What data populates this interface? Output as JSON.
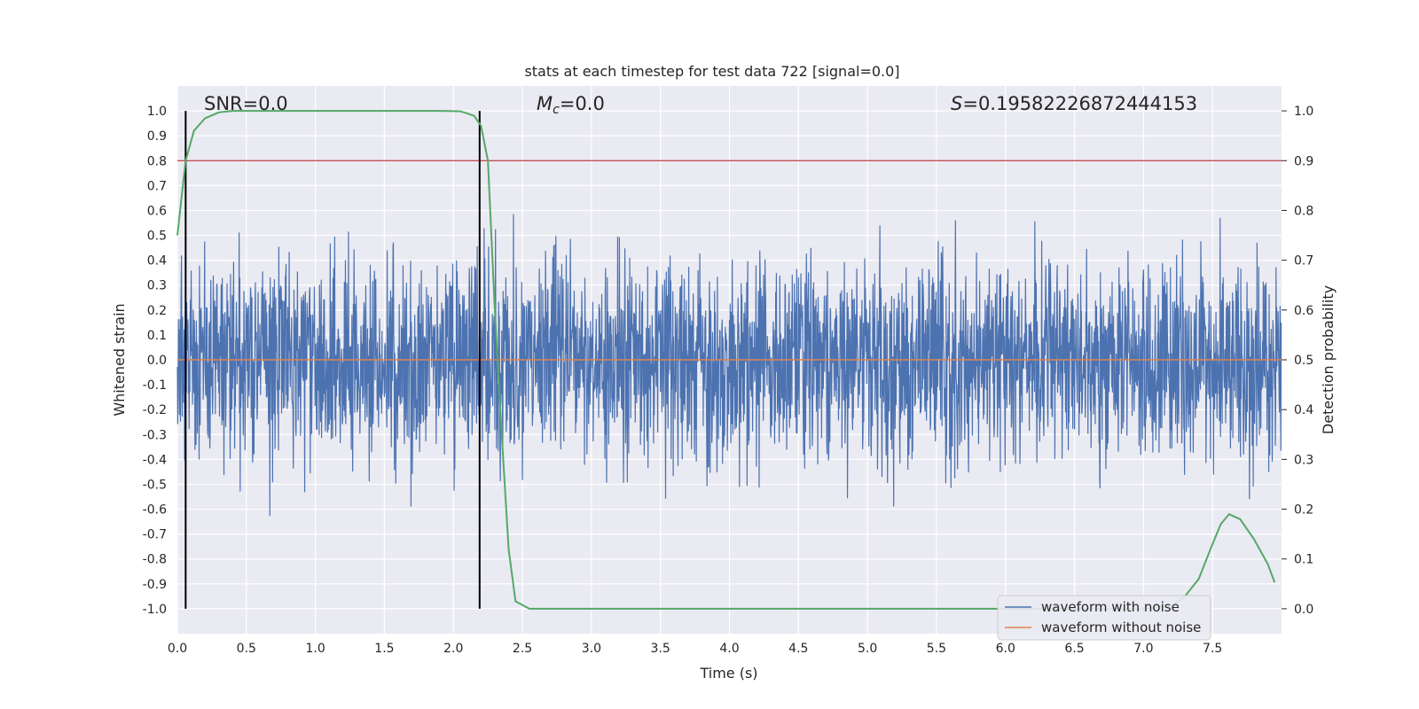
{
  "chart_data": {
    "type": "line",
    "title": "stats at each timestep for test data 722 [signal=0.0]",
    "xlabel": "Time (s)",
    "ylabel": "Whitened strain",
    "y2label": "Detection probability",
    "xlim": [
      0.0,
      8.0
    ],
    "ylim": [
      -1.1,
      1.1
    ],
    "y2lim": [
      -0.05,
      1.05
    ],
    "x_ticks": [
      "0.0",
      "0.5",
      "1.0",
      "1.5",
      "2.0",
      "2.5",
      "3.0",
      "3.5",
      "4.0",
      "4.5",
      "5.0",
      "5.5",
      "6.0",
      "6.5",
      "7.0",
      "7.5"
    ],
    "y_ticks": [
      "1.0",
      "0.9",
      "0.8",
      "0.7",
      "0.6",
      "0.5",
      "0.4",
      "0.3",
      "0.2",
      "0.1",
      "0.0",
      "-0.1",
      "-0.2",
      "-0.3",
      "-0.4",
      "-0.5",
      "-0.6",
      "-0.7",
      "-0.8",
      "-0.9",
      "-1.0"
    ],
    "y2_ticks": [
      "1.0",
      "0.9",
      "0.8",
      "0.7",
      "0.6",
      "0.5",
      "0.4",
      "0.3",
      "0.2",
      "0.1",
      "0.0"
    ],
    "grid": true,
    "annotations": {
      "snr": "SNR=0.0",
      "mc_symbol": "M",
      "mc_sub": "c",
      "mc_value": "=0.0",
      "s_symbol": "S",
      "s_value": "=0.19582226872444153"
    },
    "legend": {
      "position": "bottom-right",
      "entries": [
        {
          "label": "waveform with noise",
          "color": "#4c72b0"
        },
        {
          "label": "waveform without noise",
          "color": "#dd8452"
        }
      ]
    },
    "series": [
      {
        "name": "waveform with noise",
        "color": "#4c72b0",
        "kind": "noise",
        "duration": 8.0,
        "amplitude": 0.1958
      },
      {
        "name": "waveform without noise",
        "color": "#dd8452",
        "x": [
          0,
          8
        ],
        "y": [
          0,
          0
        ]
      },
      {
        "name": "detection probability",
        "axis": "right",
        "color": "#55a868",
        "x": [
          0.0,
          0.06,
          0.12,
          0.2,
          0.3,
          0.4,
          0.6,
          1.0,
          1.5,
          1.9,
          2.05,
          2.1,
          2.15,
          2.2,
          2.25,
          2.3,
          2.35,
          2.4,
          2.45,
          2.55,
          3.0,
          4.0,
          5.0,
          6.0,
          6.5,
          7.0,
          7.2,
          7.3,
          7.4,
          7.5,
          7.56,
          7.62,
          7.7,
          7.8,
          7.9,
          7.95
        ],
        "y": [
          0.75,
          0.9,
          0.96,
          0.985,
          0.997,
          1.0,
          1.0,
          1.0,
          1.0,
          1.0,
          0.999,
          0.995,
          0.99,
          0.97,
          0.9,
          0.6,
          0.35,
          0.12,
          0.015,
          0.0,
          0.0,
          0.0,
          0.0,
          0.0,
          0.0,
          0.0,
          0.005,
          0.025,
          0.06,
          0.13,
          0.17,
          0.19,
          0.18,
          0.14,
          0.09,
          0.053
        ]
      },
      {
        "name": "threshold",
        "axis": "right",
        "color": "#c44e52",
        "value": 0.9
      },
      {
        "name": "markers",
        "color": "#000000",
        "x": [
          0.06,
          2.19
        ]
      }
    ]
  }
}
